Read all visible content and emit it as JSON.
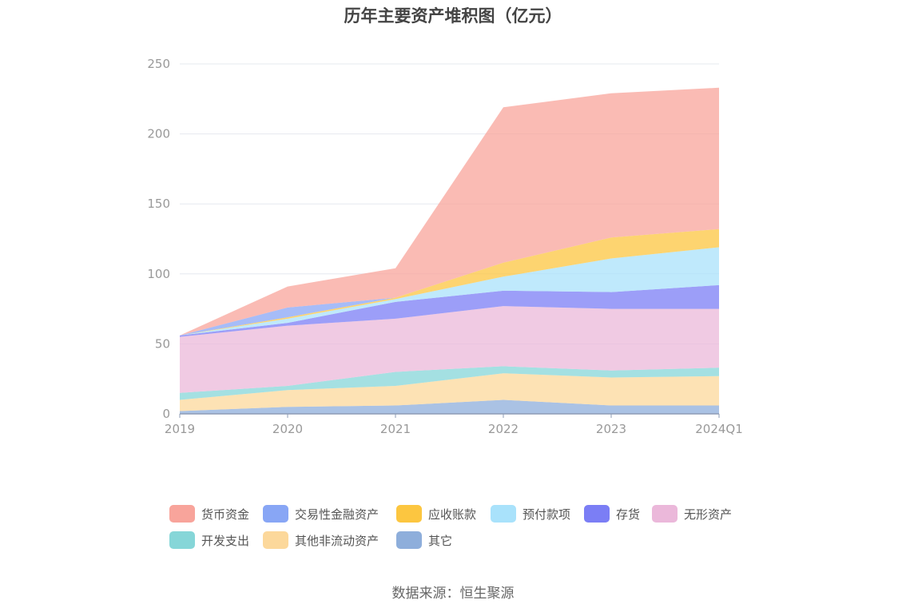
{
  "chart_data": {
    "type": "area",
    "stacked": true,
    "title": "历年主要资产堆积图（亿元）",
    "categories": [
      "2019",
      "2020",
      "2021",
      "2022",
      "2023",
      "2024Q1"
    ],
    "ylim": [
      0,
      250
    ],
    "yticks": [
      0,
      50,
      100,
      150,
      200,
      250
    ],
    "grid": true,
    "legend_position": "bottom",
    "series": [
      {
        "name": "其它",
        "color": "#8eaedb",
        "values": [
          2,
          5,
          6,
          10,
          6,
          6
        ]
      },
      {
        "name": "其他非流动资产",
        "color": "#fcd89b",
        "values": [
          8,
          12,
          14,
          19,
          20,
          21
        ]
      },
      {
        "name": "开发支出",
        "color": "#86d6d8",
        "values": [
          5,
          3,
          10,
          5,
          5,
          6
        ]
      },
      {
        "name": "无形资产",
        "color": "#ebb8da",
        "values": [
          40,
          43,
          38,
          43,
          44,
          42
        ]
      },
      {
        "name": "存货",
        "color": "#7b7ef5",
        "values": [
          1,
          2,
          12,
          11,
          12,
          17
        ]
      },
      {
        "name": "预付款项",
        "color": "#a9e2fb",
        "values": [
          0,
          3,
          2,
          10,
          24,
          27
        ]
      },
      {
        "name": "应收账款",
        "color": "#fcc640",
        "values": [
          0,
          1,
          1,
          10,
          15,
          13
        ]
      },
      {
        "name": "交易性金融资产",
        "color": "#88a6f5",
        "values": [
          0,
          7,
          0,
          0,
          0,
          0
        ]
      },
      {
        "name": "货币资金",
        "color": "#f8a49b",
        "values": [
          0,
          15,
          21,
          111,
          103,
          101
        ]
      }
    ]
  },
  "legend_order": [
    "货币资金",
    "交易性金融资产",
    "应收账款",
    "预付款项",
    "存货",
    "无形资产",
    "开发支出",
    "其他非流动资产",
    "其它"
  ],
  "source_note": "数据来源：恒生聚源"
}
